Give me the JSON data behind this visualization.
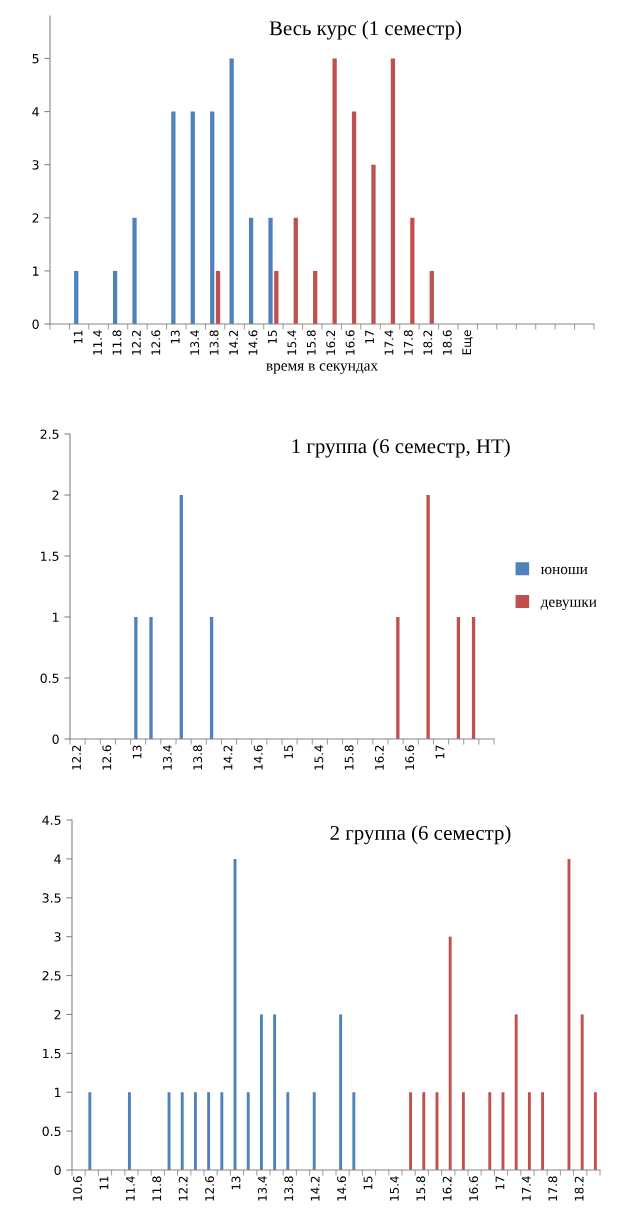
{
  "chart_data": [
    {
      "type": "bar",
      "title": "Весь курс (1 семестр)",
      "xlabel": "время в секундах",
      "categories": [
        null,
        "11",
        "11.4",
        "11.8",
        "12.2",
        "12.6",
        "13",
        "13.4",
        "13.8",
        "14.2",
        "14.6",
        "15",
        "15.4",
        "15.8",
        "16.2",
        "16.6",
        "17",
        "17.4",
        "17.8",
        "18.2",
        "18.6",
        "Еще",
        null,
        null,
        null,
        null,
        null,
        null
      ],
      "series": [
        {
          "color": "#4f81bd",
          "values": [
            0,
            1,
            0,
            1,
            2,
            0,
            4,
            4,
            4,
            5,
            2,
            2,
            0,
            0,
            0,
            0,
            0,
            0,
            0,
            0,
            0,
            0,
            0,
            0,
            0,
            0,
            0,
            0
          ]
        },
        {
          "color": "#c0504d",
          "values": [
            0,
            0,
            0,
            0,
            0,
            0,
            0,
            0,
            1,
            0,
            0,
            1,
            2,
            1,
            5,
            4,
            3,
            5,
            2,
            1,
            0,
            0,
            0,
            0,
            0,
            0,
            0,
            0
          ]
        }
      ],
      "ylim": [
        0,
        5.8
      ],
      "yticks": [
        0,
        1,
        2,
        3,
        4,
        5
      ]
    },
    {
      "type": "bar",
      "title": "1 группа (6 семестр, НТ)",
      "categories": [
        "12.2",
        null,
        "12.6",
        null,
        "13",
        null,
        "13.4",
        null,
        "13.8",
        null,
        "14.2",
        null,
        "14.6",
        null,
        "15",
        null,
        "15.4",
        null,
        "15.8",
        null,
        "16.2",
        null,
        "16.6",
        null,
        "17",
        null,
        null,
        null
      ],
      "series": [
        {
          "name": "юноши",
          "color": "#4f81bd",
          "values": [
            0,
            0,
            0,
            0,
            1,
            1,
            0,
            2,
            0,
            1,
            0,
            0,
            0,
            0,
            0,
            0,
            0,
            0,
            0,
            0,
            0,
            0,
            0,
            0,
            0,
            0,
            0,
            0
          ]
        },
        {
          "name": "девушки",
          "color": "#c0504d",
          "values": [
            0,
            0,
            0,
            0,
            0,
            0,
            0,
            0,
            0,
            0,
            0,
            0,
            0,
            0,
            0,
            0,
            0,
            0,
            0,
            0,
            0,
            1,
            0,
            2,
            0,
            1,
            1,
            0
          ]
        }
      ],
      "ylim": [
        0,
        2.5
      ],
      "yticks": [
        0,
        0.5,
        1,
        1.5,
        2,
        2.5
      ],
      "legend": "right"
    },
    {
      "type": "bar",
      "title": "2 группа (6 семестр)",
      "categories": [
        "10.6",
        null,
        "11",
        null,
        "11.4",
        null,
        "11.8",
        null,
        "12.2",
        null,
        "12.6",
        null,
        "13",
        null,
        "13.4",
        null,
        "13.8",
        null,
        "14.2",
        null,
        "14.6",
        null,
        "15",
        null,
        "15.4",
        null,
        "15.8",
        null,
        "16.2",
        null,
        "16.6",
        null,
        "17",
        null,
        "17.4",
        null,
        "17.8",
        null,
        "18.2",
        null
      ],
      "series": [
        {
          "color": "#4f81bd",
          "values": [
            0,
            1,
            0,
            0,
            1,
            0,
            0,
            1,
            1,
            1,
            1,
            1,
            4,
            1,
            2,
            2,
            1,
            0,
            1,
            0,
            2,
            1,
            0,
            0,
            0,
            0,
            0,
            0,
            0,
            0,
            0,
            0,
            0,
            0,
            0,
            0,
            0,
            0,
            0,
            0
          ]
        },
        {
          "color": "#c0504d",
          "values": [
            0,
            0,
            0,
            0,
            0,
            0,
            0,
            0,
            0,
            0,
            0,
            0,
            0,
            0,
            0,
            0,
            0,
            0,
            0,
            0,
            0,
            0,
            0,
            0,
            0,
            1,
            1,
            1,
            3,
            1,
            0,
            1,
            1,
            2,
            1,
            1,
            0,
            4,
            2,
            1
          ]
        }
      ],
      "ylim": [
        0,
        4.5
      ],
      "yticks": [
        0,
        0.5,
        1,
        1.5,
        2,
        2.5,
        3,
        3.5,
        4,
        4.5
      ]
    }
  ]
}
